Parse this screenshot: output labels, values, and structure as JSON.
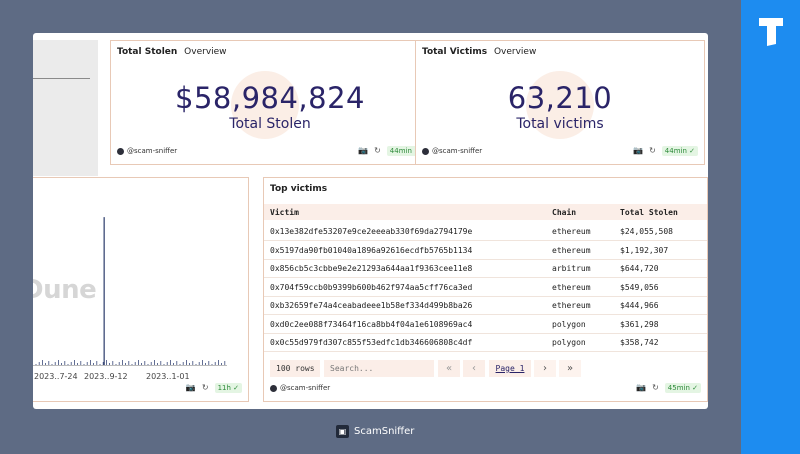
{
  "total_stolen_card": {
    "title": "Total Stolen",
    "tab": "Overview",
    "value": "$58,984,824",
    "label": "Total Stolen",
    "author": "@scam-sniffer",
    "freshness": "44min ✓"
  },
  "total_victims_card": {
    "title": "Total Victims",
    "tab": "Overview",
    "value": "63,210",
    "label": "Total victims",
    "author": "@scam-sniffer",
    "freshness": "44min ✓"
  },
  "chart_card": {
    "watermark": "Dune",
    "freshness": "11h ✓",
    "chart_data": {
      "type": "bar",
      "x_ticks": [
        "2023..7-24",
        "2023..9-12",
        "2023..1-01"
      ],
      "spike_x_fraction": 0.37,
      "spike_y_fraction": 0.93,
      "grid": false
    }
  },
  "top_victims": {
    "title": "Top victims",
    "columns": [
      "Victim",
      "Chain",
      "Total Stolen"
    ],
    "rows": [
      [
        "0x13e382dfe53207e9ce2eeeab330f69da2794179e",
        "ethereum",
        "$24,055,508"
      ],
      [
        "0x5197da90fb01040a1896a92616ecdfb5765b1134",
        "ethereum",
        "$1,192,307"
      ],
      [
        "0x856cb5c3cbbe9e2e21293a644aa1f9363cee11e8",
        "arbitrum",
        "$644,720"
      ],
      [
        "0x704f59ccb0b9399b600b462f974aa5cff76ca3ed",
        "ethereum",
        "$549,056"
      ],
      [
        "0xb32659fe74a4ceabadeee1b58ef334d499b8ba26",
        "ethereum",
        "$444,966"
      ],
      [
        "0xd0c2ee088f73464f16ca8bb4f04a1e6108969ac4",
        "polygon",
        "$361,298"
      ],
      [
        "0x0c55d979fd307c855f53edfc1db346606808c4df",
        "polygon",
        "$358,742"
      ]
    ],
    "row_count": "100 rows",
    "search_placeholder": "Search...",
    "page_label": "Page 1",
    "author": "@scam-sniffer",
    "freshness": "45min ✓"
  },
  "brand": {
    "name": "ScamSniffer"
  },
  "colors": {
    "sidebar": "#1d8cf0",
    "background": "#5e6b84",
    "number": "#2a2468",
    "accent_bg": "#fbeee8"
  }
}
